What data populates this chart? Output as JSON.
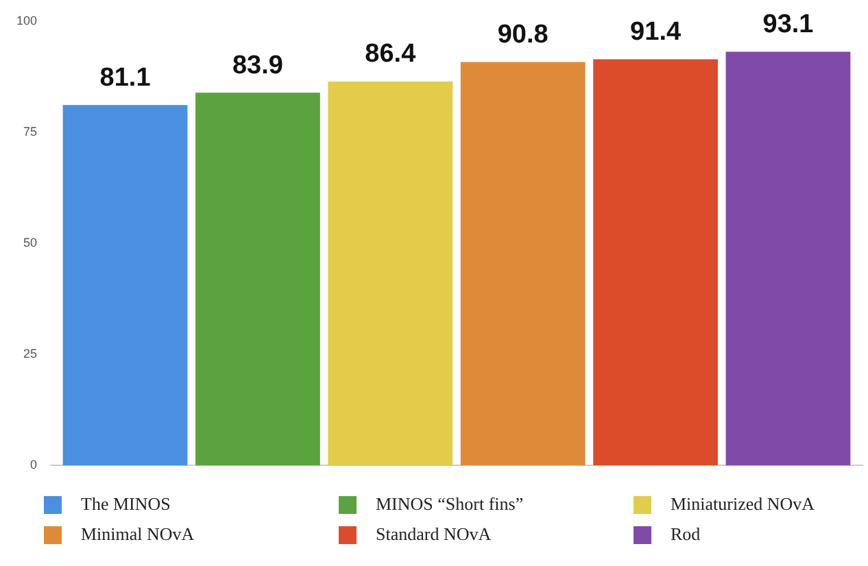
{
  "chart_data": {
    "type": "bar",
    "categories": [
      null
    ],
    "series": [
      {
        "name": "The MINOS",
        "color": "#4a8fe0",
        "values": [
          81.1
        ]
      },
      {
        "name": "MINOS “Short fins”",
        "color": "#5aa33f",
        "values": [
          83.9
        ]
      },
      {
        "name": "Miniaturized NOvA",
        "color": "#e2cc4a",
        "values": [
          86.4
        ]
      },
      {
        "name": "Minimal NOvA",
        "color": "#df8a38",
        "values": [
          90.8
        ]
      },
      {
        "name": "Standard NOvA",
        "color": "#dc4b2a",
        "values": [
          91.4
        ]
      },
      {
        "name": "Rod",
        "color": "#7f4aa8",
        "values": [
          93.1
        ]
      }
    ],
    "ylim": [
      0,
      100
    ],
    "yticks": [
      0,
      25,
      50,
      75,
      100
    ],
    "grid": false,
    "legend": "bottom",
    "data_labels": true
  }
}
